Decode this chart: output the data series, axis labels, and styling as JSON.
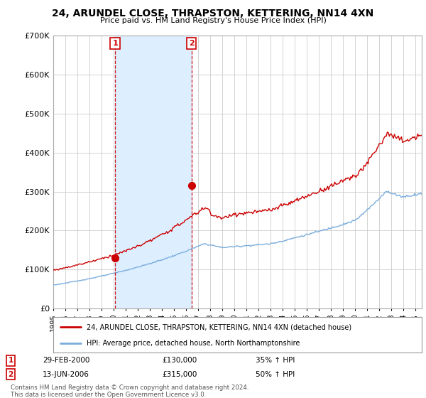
{
  "title": "24, ARUNDEL CLOSE, THRAPSTON, KETTERING, NN14 4XN",
  "subtitle": "Price paid vs. HM Land Registry's House Price Index (HPI)",
  "legend_line1": "24, ARUNDEL CLOSE, THRAPSTON, KETTERING, NN14 4XN (detached house)",
  "legend_line2": "HPI: Average price, detached house, North Northamptonshire",
  "footnote": "Contains HM Land Registry data © Crown copyright and database right 2024.\nThis data is licensed under the Open Government Licence v3.0.",
  "price_color": "#cc0000",
  "hpi_color": "#7aaddc",
  "shade_color": "#ddeeff",
  "sale1_t": 2000.12,
  "sale1_price": 130000,
  "sale1_label": "1",
  "sale1_hpi_pct": "35% ↑ HPI",
  "sale1_date_str": "29-FEB-2000",
  "sale2_t": 2006.45,
  "sale2_price": 315000,
  "sale2_label": "2",
  "sale2_hpi_pct": "50% ↑ HPI",
  "sale2_date_str": "13-JUN-2006",
  "ylim": [
    0,
    700000
  ],
  "yticks": [
    0,
    100000,
    200000,
    300000,
    400000,
    500000,
    600000,
    700000
  ],
  "xlim_start": 1995.0,
  "xlim_end": 2025.5,
  "background_color": "#ffffff"
}
